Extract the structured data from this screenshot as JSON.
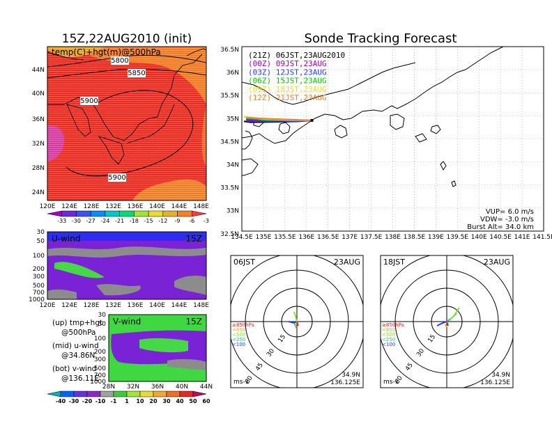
{
  "left_title": "15Z,22AUG2010 (init)",
  "right_title": "Sonde Tracking Forecast",
  "top_map": {
    "label": "temp(C)+hgt(m)@500hPa",
    "lat_ticks": [
      "44N",
      "40N",
      "36N",
      "32N",
      "28N",
      "24N"
    ],
    "lon_ticks": [
      "120E",
      "124E",
      "128E",
      "132E",
      "136E",
      "140E",
      "144E",
      "148E"
    ],
    "contour_labels": [
      "5800",
      "5850",
      "5900",
      "5900"
    ],
    "colorbar_labels": [
      "-33",
      "-30",
      "-27",
      "-24",
      "-21",
      "-18",
      "-15",
      "-12",
      "-9",
      "-6",
      "-3"
    ],
    "colorbar_colors": [
      "#a000c8",
      "#6e28dc",
      "#3c50f0",
      "#0a8cff",
      "#00c8c8",
      "#00dc78",
      "#a0e632",
      "#e6dc32",
      "#e6af2d",
      "#f08228",
      "#fa3c3c"
    ]
  },
  "u_wind": {
    "label": "U-wind",
    "time": "15Z",
    "p_ticks": [
      "30",
      "50",
      "100",
      "200",
      "300",
      "500",
      "700",
      "1000"
    ],
    "lon_ticks": [
      "120E",
      "124E",
      "128E",
      "132E",
      "136E",
      "140E",
      "144E",
      "148E"
    ]
  },
  "v_wind": {
    "label": "V-wind",
    "time": "15Z",
    "p_ticks": [
      "30",
      "50",
      "100",
      "200",
      "300",
      "500",
      "700",
      "1000"
    ],
    "lat_ticks": [
      "28N",
      "32N",
      "36N",
      "40N",
      "44N"
    ]
  },
  "notes": {
    "up1": "(up) tmp+hgt",
    "up2": "@500hPa",
    "mid1": "(mid) u-wind",
    "mid2": "@34.86N",
    "bot1": "(bot) v-wind",
    "bot2": "@136.11E"
  },
  "wind_colorbar": {
    "labels": [
      "-40",
      "-30",
      "-20",
      "-10",
      "-1",
      "1",
      "10",
      "20",
      "30",
      "40",
      "50",
      "60"
    ],
    "colors": [
      "#00b4b4",
      "#0064ff",
      "#6432dc",
      "#8c28c8",
      "#a0a0a0",
      "#3ccc3c",
      "#a0e632",
      "#e6dc32",
      "#f0aa28",
      "#f06e28",
      "#e62828",
      "#c80064"
    ]
  },
  "track_map": {
    "lat_ticks": [
      "36.5N",
      "36N",
      "35.5N",
      "35N",
      "34.5N",
      "34N",
      "33.5N",
      "33N",
      "32.5N"
    ],
    "lon_ticks": [
      "134.5E",
      "135E",
      "135.5E",
      "136E",
      "136.5E",
      "137E",
      "137.5E",
      "138E",
      "138.5E",
      "139E",
      "139.5E",
      "140E",
      "140.5E",
      "141E",
      "141.5E"
    ],
    "legend": [
      {
        "text": "(21Z) 06JST,23AUG2010",
        "color": "#000000"
      },
      {
        "text": "(00Z) 09JST,23AUG",
        "color": "#a000c8"
      },
      {
        "text": "(03Z) 12JST,23AUG",
        "color": "#1e3cff"
      },
      {
        "text": "(06Z) 15JST,23AUG",
        "color": "#00c800"
      },
      {
        "text": "(09Z) 18JST,23AUG",
        "color": "#e6dc32"
      },
      {
        "text": "(12Z) 21JST,23AUG",
        "color": "#f08228"
      }
    ],
    "info": [
      "VUP= 6.0 m/s",
      "VDW= -3.0 m/s",
      "Burst Alt= 34.0 km"
    ]
  },
  "hodo1": {
    "time": "06JST",
    "date": "23AUG",
    "ring_labels": [
      "15",
      "30",
      "45",
      "60"
    ],
    "levels": [
      {
        "text": "≥850hPa",
        "color": "#e62828"
      },
      {
        "text": "<850",
        "color": "#f0aa28"
      },
      {
        "text": "<500",
        "color": "#8cdc32"
      },
      {
        "text": "<250",
        "color": "#00c8c8"
      },
      {
        "text": "<100",
        "color": "#1e3cff"
      }
    ],
    "unit": "ms-1",
    "lat": "34.9N",
    "lon": "136.125E"
  },
  "hodo2": {
    "time": "18JST",
    "date": "23AUG",
    "ring_labels": [
      "15",
      "30",
      "45",
      "60"
    ],
    "levels": [
      {
        "text": "≥850hPa",
        "color": "#e62828"
      },
      {
        "text": "<850",
        "color": "#f0aa28"
      },
      {
        "text": "<500",
        "color": "#8cdc32"
      },
      {
        "text": "<250",
        "color": "#00c8c8"
      },
      {
        "text": "<100",
        "color": "#1e3cff"
      }
    ],
    "unit": "ms-1",
    "lat": "34.9N",
    "lon": "136.125E"
  },
  "chart_data": {
    "type": "heatmap",
    "title": "Sonde Tracking Forecast",
    "panels": [
      "temp(C)+hgt(m)@500hPa",
      "U-wind",
      "V-wind",
      "track map",
      "hodograph 06JST",
      "hodograph 18JST"
    ],
    "launch_point": {
      "lat": 34.9,
      "lon": 136.125
    },
    "xlim_track": [
      134.5,
      141.5
    ],
    "ylim_track": [
      32.5,
      36.5
    ],
    "tracks": [
      {
        "name": "(21Z) 06JST,23AUG2010",
        "lon": [
          136.125,
          135.8,
          135.3,
          134.7,
          134.55
        ],
        "lat": [
          34.9,
          34.88,
          34.87,
          34.86,
          34.88
        ]
      },
      {
        "name": "(00Z) 09JST,23AUG",
        "lon": [
          136.125,
          135.7,
          135.1,
          134.6
        ],
        "lat": [
          34.9,
          34.89,
          34.88,
          34.89
        ]
      },
      {
        "name": "(03Z) 12JST,23AUG",
        "lon": [
          136.125,
          135.8,
          135.2,
          134.6
        ],
        "lat": [
          34.9,
          34.89,
          34.88,
          34.92
        ]
      },
      {
        "name": "(06Z) 15JST,23AUG",
        "lon": [
          136.125,
          135.7,
          135.0,
          134.6
        ],
        "lat": [
          34.9,
          34.9,
          34.91,
          34.95
        ]
      },
      {
        "name": "(09Z) 18JST,23AUG",
        "lon": [
          136.125,
          135.6,
          135.0,
          134.55
        ],
        "lat": [
          34.9,
          34.91,
          34.93,
          34.98
        ]
      },
      {
        "name": "(12Z) 21JST,23AUG",
        "lon": [
          136.125,
          135.6,
          135.0,
          134.6
        ],
        "lat": [
          34.9,
          34.92,
          34.94,
          34.96
        ]
      }
    ],
    "vup_ms": 6.0,
    "vdw_ms": -3.0,
    "burst_alt_km": 34.0,
    "hodo_rings_ms": [
      15,
      30,
      45,
      60
    ]
  }
}
